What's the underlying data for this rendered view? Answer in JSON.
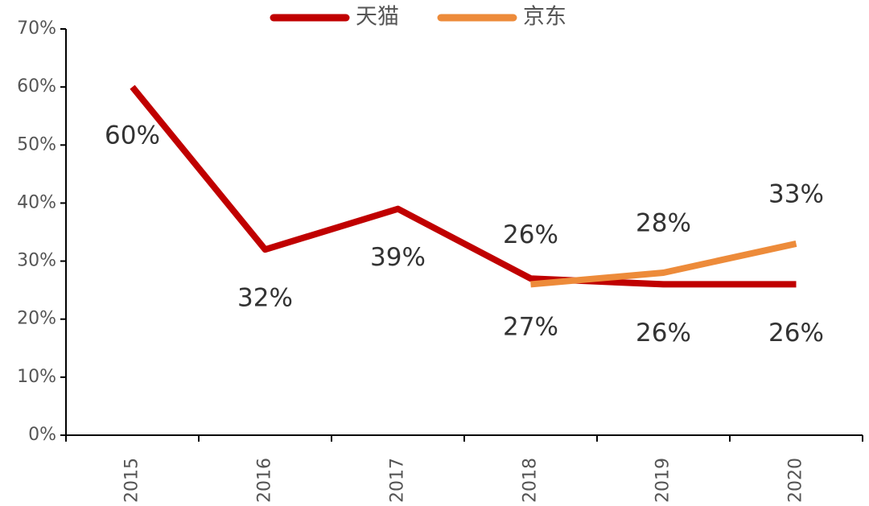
{
  "chart_data": {
    "type": "line",
    "categories": [
      "2015",
      "2016",
      "2017",
      "2018",
      "2019",
      "2020"
    ],
    "series": [
      {
        "name": "天猫",
        "color": "#c00000",
        "values": [
          60,
          32,
          39,
          27,
          26,
          26
        ],
        "value_labels": [
          "60%",
          "32%",
          "39%",
          "27%",
          "26%",
          "26%"
        ]
      },
      {
        "name": "京东",
        "color": "#ed8b3a",
        "values": [
          null,
          null,
          null,
          26,
          28,
          33
        ],
        "value_labels": [
          null,
          null,
          null,
          "26%",
          "28%",
          "33%"
        ]
      }
    ],
    "ylim": [
      0,
      70
    ],
    "yticks": [
      {
        "value": 0,
        "label": "0%"
      },
      {
        "value": 10,
        "label": "10%"
      },
      {
        "value": 20,
        "label": "20%"
      },
      {
        "value": 30,
        "label": "30%"
      },
      {
        "value": 40,
        "label": "40%"
      },
      {
        "value": 50,
        "label": "50%"
      },
      {
        "value": 60,
        "label": "60%"
      },
      {
        "value": 70,
        "label": "70%"
      }
    ],
    "grid": false
  }
}
